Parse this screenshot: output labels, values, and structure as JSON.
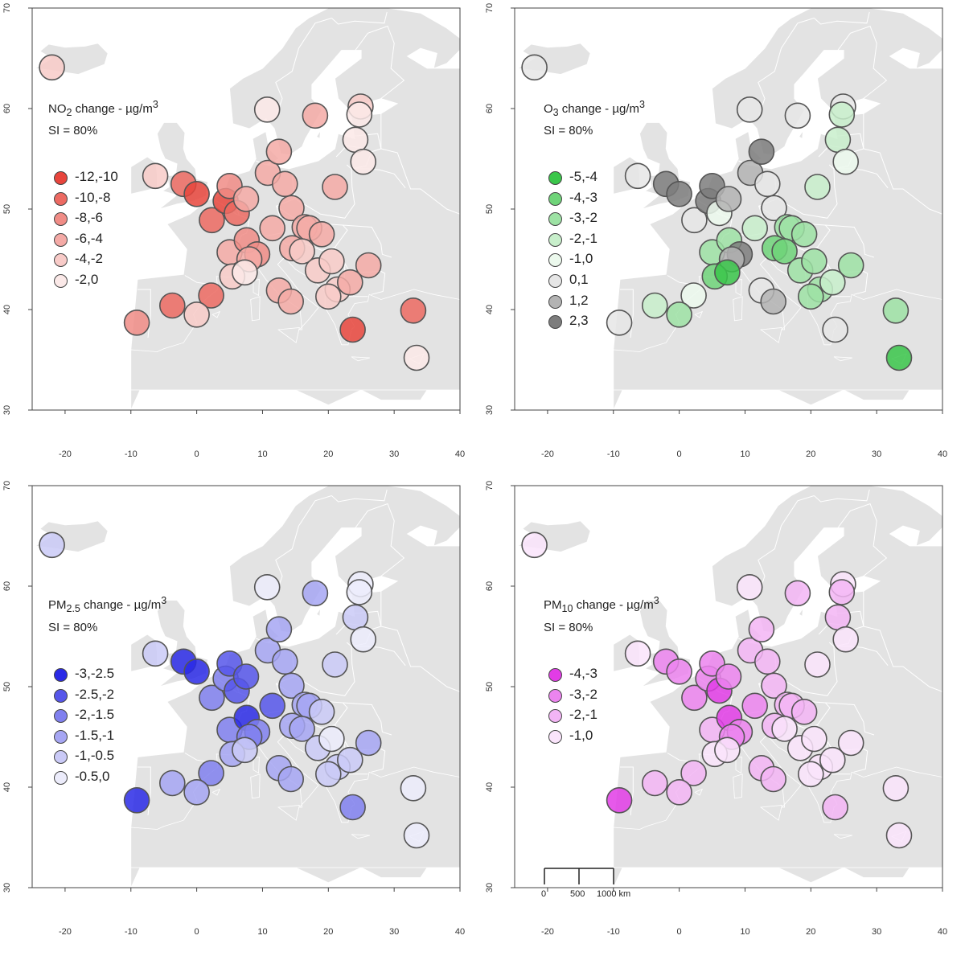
{
  "panels": [
    {
      "title_pre": "NO",
      "title_sub": "2",
      "title_post": " change - µg/m",
      "title_sup": "3",
      "si_label": "SI = 80%",
      "accent": "#e53935",
      "legend": [
        {
          "label": "-12,-10",
          "color": "#e8453c"
        },
        {
          "label": "-10,-8",
          "color": "#ec6a62"
        },
        {
          "label": "-8,-6",
          "color": "#f08c86"
        },
        {
          "label": "-6,-4",
          "color": "#f4aaa6"
        },
        {
          "label": "-4,-2",
          "color": "#f8cbc8"
        },
        {
          "label": "-2,0",
          "color": "#fbe9e8"
        }
      ],
      "stations": [
        {
          "lon": -22,
          "lat": 64.1,
          "cls": 4
        },
        {
          "lon": -6.3,
          "lat": 53.3,
          "cls": 4
        },
        {
          "lon": -2,
          "lat": 52.5,
          "cls": 1
        },
        {
          "lon": 0,
          "lat": 51.5,
          "cls": 0
        },
        {
          "lon": 2.3,
          "lat": 48.9,
          "cls": 1
        },
        {
          "lon": 4.4,
          "lat": 50.8,
          "cls": 0
        },
        {
          "lon": 5,
          "lat": 52.3,
          "cls": 2
        },
        {
          "lon": 6.1,
          "lat": 49.6,
          "cls": 1
        },
        {
          "lon": 7.5,
          "lat": 51,
          "cls": 3
        },
        {
          "lon": 10.8,
          "lat": 53.6,
          "cls": 3
        },
        {
          "lon": 12.5,
          "lat": 55.7,
          "cls": 3
        },
        {
          "lon": 13.4,
          "lat": 52.5,
          "cls": 3
        },
        {
          "lon": 14.4,
          "lat": 50.1,
          "cls": 3
        },
        {
          "lon": 11.5,
          "lat": 48.1,
          "cls": 3
        },
        {
          "lon": 16.4,
          "lat": 48.2,
          "cls": 3
        },
        {
          "lon": 17.1,
          "lat": 48.1,
          "cls": 3
        },
        {
          "lon": 19,
          "lat": 47.5,
          "cls": 3
        },
        {
          "lon": 21,
          "lat": 52.2,
          "cls": 3
        },
        {
          "lon": 5,
          "lat": 45.7,
          "cls": 3
        },
        {
          "lon": 7.6,
          "lat": 46.9,
          "cls": 2
        },
        {
          "lon": 9.2,
          "lat": 45.5,
          "cls": 2
        },
        {
          "lon": 8,
          "lat": 45,
          "cls": 3
        },
        {
          "lon": 5.4,
          "lat": 43.3,
          "cls": 4
        },
        {
          "lon": 7.3,
          "lat": 43.7,
          "cls": 5
        },
        {
          "lon": 2.2,
          "lat": 41.4,
          "cls": 1
        },
        {
          "lon": -3.7,
          "lat": 40.4,
          "cls": 1
        },
        {
          "lon": 0,
          "lat": 39.5,
          "cls": 4
        },
        {
          "lon": -9.1,
          "lat": 38.7,
          "cls": 2
        },
        {
          "lon": 12.5,
          "lat": 41.9,
          "cls": 3
        },
        {
          "lon": 14.3,
          "lat": 40.8,
          "cls": 3
        },
        {
          "lon": 14.5,
          "lat": 46.1,
          "cls": 3
        },
        {
          "lon": 16,
          "lat": 45.8,
          "cls": 4
        },
        {
          "lon": 18.4,
          "lat": 43.9,
          "cls": 4
        },
        {
          "lon": 20.5,
          "lat": 44.8,
          "cls": 4
        },
        {
          "lon": 21.4,
          "lat": 42,
          "cls": 4
        },
        {
          "lon": 23.3,
          "lat": 42.7,
          "cls": 3
        },
        {
          "lon": 26.1,
          "lat": 44.4,
          "cls": 3
        },
        {
          "lon": 20,
          "lat": 41.3,
          "cls": 4
        },
        {
          "lon": 23.7,
          "lat": 38,
          "cls": 0
        },
        {
          "lon": 32.9,
          "lat": 39.9,
          "cls": 1
        },
        {
          "lon": 33.4,
          "lat": 35.2,
          "cls": 5
        },
        {
          "lon": 18,
          "lat": 59.3,
          "cls": 3
        },
        {
          "lon": 10.7,
          "lat": 59.9,
          "cls": 5
        },
        {
          "lon": 24.9,
          "lat": 60.2,
          "cls": 4
        },
        {
          "lon": 24.7,
          "lat": 59.4,
          "cls": 5
        },
        {
          "lon": 24.1,
          "lat": 56.9,
          "cls": 5
        },
        {
          "lon": 25.3,
          "lat": 54.7,
          "cls": 5
        }
      ]
    },
    {
      "title_pre": "O",
      "title_sub": "3",
      "title_post": " change - µg/m",
      "title_sup": "3",
      "si_label": "SI = 80%",
      "accent": "#2fbf3a",
      "legend": [
        {
          "label": "-5,-4",
          "color": "#3ac64a"
        },
        {
          "label": "-4,-3",
          "color": "#6fd479"
        },
        {
          "label": "-3,-2",
          "color": "#9de2a4"
        },
        {
          "label": "-2,-1",
          "color": "#c8efcb"
        },
        {
          "label": "-1,0",
          "color": "#ecf9ed"
        },
        {
          "label": "0,1",
          "color": "#e6e6e6"
        },
        {
          "label": "1,2",
          "color": "#b3b3b3"
        },
        {
          "label": "2,3",
          "color": "#7d7d7d"
        }
      ],
      "stations": [
        {
          "lon": -22,
          "lat": 64.1,
          "cls": 5
        },
        {
          "lon": -6.3,
          "lat": 53.3,
          "cls": 5
        },
        {
          "lon": -2,
          "lat": 52.5,
          "cls": 7
        },
        {
          "lon": 0,
          "lat": 51.5,
          "cls": 7
        },
        {
          "lon": 2.3,
          "lat": 48.9,
          "cls": 5
        },
        {
          "lon": 4.4,
          "lat": 50.8,
          "cls": 7
        },
        {
          "lon": 5,
          "lat": 52.3,
          "cls": 7
        },
        {
          "lon": 6.1,
          "lat": 49.6,
          "cls": 4
        },
        {
          "lon": 7.5,
          "lat": 51,
          "cls": 6
        },
        {
          "lon": 10.8,
          "lat": 53.6,
          "cls": 6
        },
        {
          "lon": 12.5,
          "lat": 55.7,
          "cls": 7
        },
        {
          "lon": 13.4,
          "lat": 52.5,
          "cls": 5
        },
        {
          "lon": 14.4,
          "lat": 50.1,
          "cls": 5
        },
        {
          "lon": 11.5,
          "lat": 48.1,
          "cls": 3
        },
        {
          "lon": 16.4,
          "lat": 48.2,
          "cls": 2
        },
        {
          "lon": 17.1,
          "lat": 48.1,
          "cls": 2
        },
        {
          "lon": 19,
          "lat": 47.5,
          "cls": 2
        },
        {
          "lon": 21,
          "lat": 52.2,
          "cls": 3
        },
        {
          "lon": 5,
          "lat": 45.7,
          "cls": 2
        },
        {
          "lon": 7.6,
          "lat": 46.9,
          "cls": 2
        },
        {
          "lon": 9.2,
          "lat": 45.5,
          "cls": 7
        },
        {
          "lon": 8,
          "lat": 45,
          "cls": 6
        },
        {
          "lon": 5.4,
          "lat": 43.3,
          "cls": 1
        },
        {
          "lon": 7.3,
          "lat": 43.7,
          "cls": 0
        },
        {
          "lon": 2.2,
          "lat": 41.4,
          "cls": 4
        },
        {
          "lon": -3.7,
          "lat": 40.4,
          "cls": 3
        },
        {
          "lon": 0,
          "lat": 39.5,
          "cls": 2
        },
        {
          "lon": -9.1,
          "lat": 38.7,
          "cls": 5
        },
        {
          "lon": 12.5,
          "lat": 41.9,
          "cls": 5
        },
        {
          "lon": 14.3,
          "lat": 40.8,
          "cls": 6
        },
        {
          "lon": 14.5,
          "lat": 46.1,
          "cls": 1
        },
        {
          "lon": 16,
          "lat": 45.8,
          "cls": 1
        },
        {
          "lon": 18.4,
          "lat": 43.9,
          "cls": 2
        },
        {
          "lon": 20.5,
          "lat": 44.8,
          "cls": 2
        },
        {
          "lon": 21.4,
          "lat": 42,
          "cls": 2
        },
        {
          "lon": 23.3,
          "lat": 42.7,
          "cls": 3
        },
        {
          "lon": 26.1,
          "lat": 44.4,
          "cls": 2
        },
        {
          "lon": 20,
          "lat": 41.3,
          "cls": 2
        },
        {
          "lon": 23.7,
          "lat": 38,
          "cls": 5
        },
        {
          "lon": 32.9,
          "lat": 39.9,
          "cls": 2
        },
        {
          "lon": 33.4,
          "lat": 35.2,
          "cls": 0
        },
        {
          "lon": 18,
          "lat": 59.3,
          "cls": 5
        },
        {
          "lon": 10.7,
          "lat": 59.9,
          "cls": 5
        },
        {
          "lon": 24.9,
          "lat": 60.2,
          "cls": 5
        },
        {
          "lon": 24.7,
          "lat": 59.4,
          "cls": 3
        },
        {
          "lon": 24.1,
          "lat": 56.9,
          "cls": 3
        },
        {
          "lon": 25.3,
          "lat": 54.7,
          "cls": 4
        }
      ]
    },
    {
      "title_pre": "PM",
      "title_sub": "2.5",
      "title_post": " change - µg/m",
      "title_sup": "3",
      "si_label": "SI = 80%",
      "accent": "#2222ee",
      "legend": [
        {
          "label": "-3,-2.5",
          "color": "#2a2ae6"
        },
        {
          "label": "-2.5,-2",
          "color": "#5656ea"
        },
        {
          "label": "-2,-1.5",
          "color": "#8080ef"
        },
        {
          "label": "-1.5,-1",
          "color": "#a6a6f3"
        },
        {
          "label": "-1,-0.5",
          "color": "#cacaf7"
        },
        {
          "label": "-0.5,0",
          "color": "#ececfb"
        }
      ],
      "stations": [
        {
          "lon": -22,
          "lat": 64.1,
          "cls": 4
        },
        {
          "lon": -6.3,
          "lat": 53.3,
          "cls": 4
        },
        {
          "lon": -2,
          "lat": 52.5,
          "cls": 0
        },
        {
          "lon": 0,
          "lat": 51.5,
          "cls": 0
        },
        {
          "lon": 2.3,
          "lat": 48.9,
          "cls": 2
        },
        {
          "lon": 4.4,
          "lat": 50.8,
          "cls": 2
        },
        {
          "lon": 5,
          "lat": 52.3,
          "cls": 1
        },
        {
          "lon": 6.1,
          "lat": 49.6,
          "cls": 1
        },
        {
          "lon": 7.5,
          "lat": 51,
          "cls": 1
        },
        {
          "lon": 10.8,
          "lat": 53.6,
          "cls": 3
        },
        {
          "lon": 12.5,
          "lat": 55.7,
          "cls": 3
        },
        {
          "lon": 13.4,
          "lat": 52.5,
          "cls": 3
        },
        {
          "lon": 14.4,
          "lat": 50.1,
          "cls": 3
        },
        {
          "lon": 11.5,
          "lat": 48.1,
          "cls": 1
        },
        {
          "lon": 16.4,
          "lat": 48.2,
          "cls": 3
        },
        {
          "lon": 17.1,
          "lat": 48.1,
          "cls": 3
        },
        {
          "lon": 19,
          "lat": 47.5,
          "cls": 4
        },
        {
          "lon": 21,
          "lat": 52.2,
          "cls": 4
        },
        {
          "lon": 5,
          "lat": 45.7,
          "cls": 2
        },
        {
          "lon": 7.6,
          "lat": 46.9,
          "cls": 0
        },
        {
          "lon": 9.2,
          "lat": 45.5,
          "cls": 2
        },
        {
          "lon": 8,
          "lat": 45,
          "cls": 2
        },
        {
          "lon": 5.4,
          "lat": 43.3,
          "cls": 3
        },
        {
          "lon": 7.3,
          "lat": 43.7,
          "cls": 4
        },
        {
          "lon": 2.2,
          "lat": 41.4,
          "cls": 2
        },
        {
          "lon": -3.7,
          "lat": 40.4,
          "cls": 3
        },
        {
          "lon": 0,
          "lat": 39.5,
          "cls": 3
        },
        {
          "lon": -9.1,
          "lat": 38.7,
          "cls": 0
        },
        {
          "lon": 12.5,
          "lat": 41.9,
          "cls": 3
        },
        {
          "lon": 14.3,
          "lat": 40.8,
          "cls": 3
        },
        {
          "lon": 14.5,
          "lat": 46.1,
          "cls": 3
        },
        {
          "lon": 16,
          "lat": 45.8,
          "cls": 3
        },
        {
          "lon": 18.4,
          "lat": 43.9,
          "cls": 4
        },
        {
          "lon": 20.5,
          "lat": 44.8,
          "cls": 5
        },
        {
          "lon": 21.4,
          "lat": 42,
          "cls": 4
        },
        {
          "lon": 23.3,
          "lat": 42.7,
          "cls": 4
        },
        {
          "lon": 26.1,
          "lat": 44.4,
          "cls": 3
        },
        {
          "lon": 20,
          "lat": 41.3,
          "cls": 4
        },
        {
          "lon": 23.7,
          "lat": 38,
          "cls": 2
        },
        {
          "lon": 32.9,
          "lat": 39.9,
          "cls": 5
        },
        {
          "lon": 33.4,
          "lat": 35.2,
          "cls": 5
        },
        {
          "lon": 18,
          "lat": 59.3,
          "cls": 3
        },
        {
          "lon": 10.7,
          "lat": 59.9,
          "cls": 5
        },
        {
          "lon": 24.9,
          "lat": 60.2,
          "cls": 5
        },
        {
          "lon": 24.7,
          "lat": 59.4,
          "cls": 5
        },
        {
          "lon": 24.1,
          "lat": 56.9,
          "cls": 4
        },
        {
          "lon": 25.3,
          "lat": 54.7,
          "cls": 5
        }
      ]
    },
    {
      "title_pre": "PM",
      "title_sub": "10",
      "title_post": " change - µg/m",
      "title_sup": "3",
      "si_label": "SI = 80%",
      "accent": "#e02de0",
      "legend": [
        {
          "label": "-4,-3",
          "color": "#e23ce6"
        },
        {
          "label": "-3,-2",
          "color": "#ec84ef"
        },
        {
          "label": "-2,-1",
          "color": "#f3b5f5"
        },
        {
          "label": "-1,0",
          "color": "#fae4fb"
        }
      ],
      "stations": [
        {
          "lon": -22,
          "lat": 64.1,
          "cls": 3
        },
        {
          "lon": -6.3,
          "lat": 53.3,
          "cls": 3
        },
        {
          "lon": -2,
          "lat": 52.5,
          "cls": 1
        },
        {
          "lon": 0,
          "lat": 51.5,
          "cls": 1
        },
        {
          "lon": 2.3,
          "lat": 48.9,
          "cls": 1
        },
        {
          "lon": 4.4,
          "lat": 50.8,
          "cls": 1
        },
        {
          "lon": 5,
          "lat": 52.3,
          "cls": 1
        },
        {
          "lon": 6.1,
          "lat": 49.6,
          "cls": 0
        },
        {
          "lon": 7.5,
          "lat": 51,
          "cls": 1
        },
        {
          "lon": 10.8,
          "lat": 53.6,
          "cls": 2
        },
        {
          "lon": 12.5,
          "lat": 55.7,
          "cls": 2
        },
        {
          "lon": 13.4,
          "lat": 52.5,
          "cls": 2
        },
        {
          "lon": 14.4,
          "lat": 50.1,
          "cls": 2
        },
        {
          "lon": 11.5,
          "lat": 48.1,
          "cls": 1
        },
        {
          "lon": 16.4,
          "lat": 48.2,
          "cls": 2
        },
        {
          "lon": 17.1,
          "lat": 48.1,
          "cls": 2
        },
        {
          "lon": 19,
          "lat": 47.5,
          "cls": 2
        },
        {
          "lon": 21,
          "lat": 52.2,
          "cls": 3
        },
        {
          "lon": 5,
          "lat": 45.7,
          "cls": 2
        },
        {
          "lon": 7.6,
          "lat": 46.9,
          "cls": 0
        },
        {
          "lon": 9.2,
          "lat": 45.5,
          "cls": 1
        },
        {
          "lon": 8,
          "lat": 45,
          "cls": 1
        },
        {
          "lon": 5.4,
          "lat": 43.3,
          "cls": 3
        },
        {
          "lon": 7.3,
          "lat": 43.7,
          "cls": 3
        },
        {
          "lon": 2.2,
          "lat": 41.4,
          "cls": 2
        },
        {
          "lon": -3.7,
          "lat": 40.4,
          "cls": 2
        },
        {
          "lon": 0,
          "lat": 39.5,
          "cls": 2
        },
        {
          "lon": -9.1,
          "lat": 38.7,
          "cls": 0
        },
        {
          "lon": 12.5,
          "lat": 41.9,
          "cls": 2
        },
        {
          "lon": 14.3,
          "lat": 40.8,
          "cls": 2
        },
        {
          "lon": 14.5,
          "lat": 46.1,
          "cls": 2
        },
        {
          "lon": 16,
          "lat": 45.8,
          "cls": 3
        },
        {
          "lon": 18.4,
          "lat": 43.9,
          "cls": 3
        },
        {
          "lon": 20.5,
          "lat": 44.8,
          "cls": 3
        },
        {
          "lon": 21.4,
          "lat": 42,
          "cls": 3
        },
        {
          "lon": 23.3,
          "lat": 42.7,
          "cls": 3
        },
        {
          "lon": 26.1,
          "lat": 44.4,
          "cls": 3
        },
        {
          "lon": 20,
          "lat": 41.3,
          "cls": 3
        },
        {
          "lon": 23.7,
          "lat": 38,
          "cls": 2
        },
        {
          "lon": 32.9,
          "lat": 39.9,
          "cls": 3
        },
        {
          "lon": 33.4,
          "lat": 35.2,
          "cls": 3
        },
        {
          "lon": 18,
          "lat": 59.3,
          "cls": 2
        },
        {
          "lon": 10.7,
          "lat": 59.9,
          "cls": 3
        },
        {
          "lon": 24.9,
          "lat": 60.2,
          "cls": 3
        },
        {
          "lon": 24.7,
          "lat": 59.4,
          "cls": 2
        },
        {
          "lon": 24.1,
          "lat": 56.9,
          "cls": 2
        },
        {
          "lon": 25.3,
          "lat": 54.7,
          "cls": 3
        }
      ],
      "scalebar": {
        "labels": [
          "0",
          "500",
          "1000 km"
        ]
      }
    }
  ],
  "axes": {
    "x_ticks": [
      -20,
      -10,
      0,
      10,
      20,
      30,
      40
    ],
    "y_ticks": [
      30,
      40,
      50,
      60,
      70
    ],
    "xlim": [
      -25,
      40
    ],
    "ylim": [
      30,
      70
    ]
  },
  "land_color": "#e3e3e3",
  "border_color": "#ffffff"
}
